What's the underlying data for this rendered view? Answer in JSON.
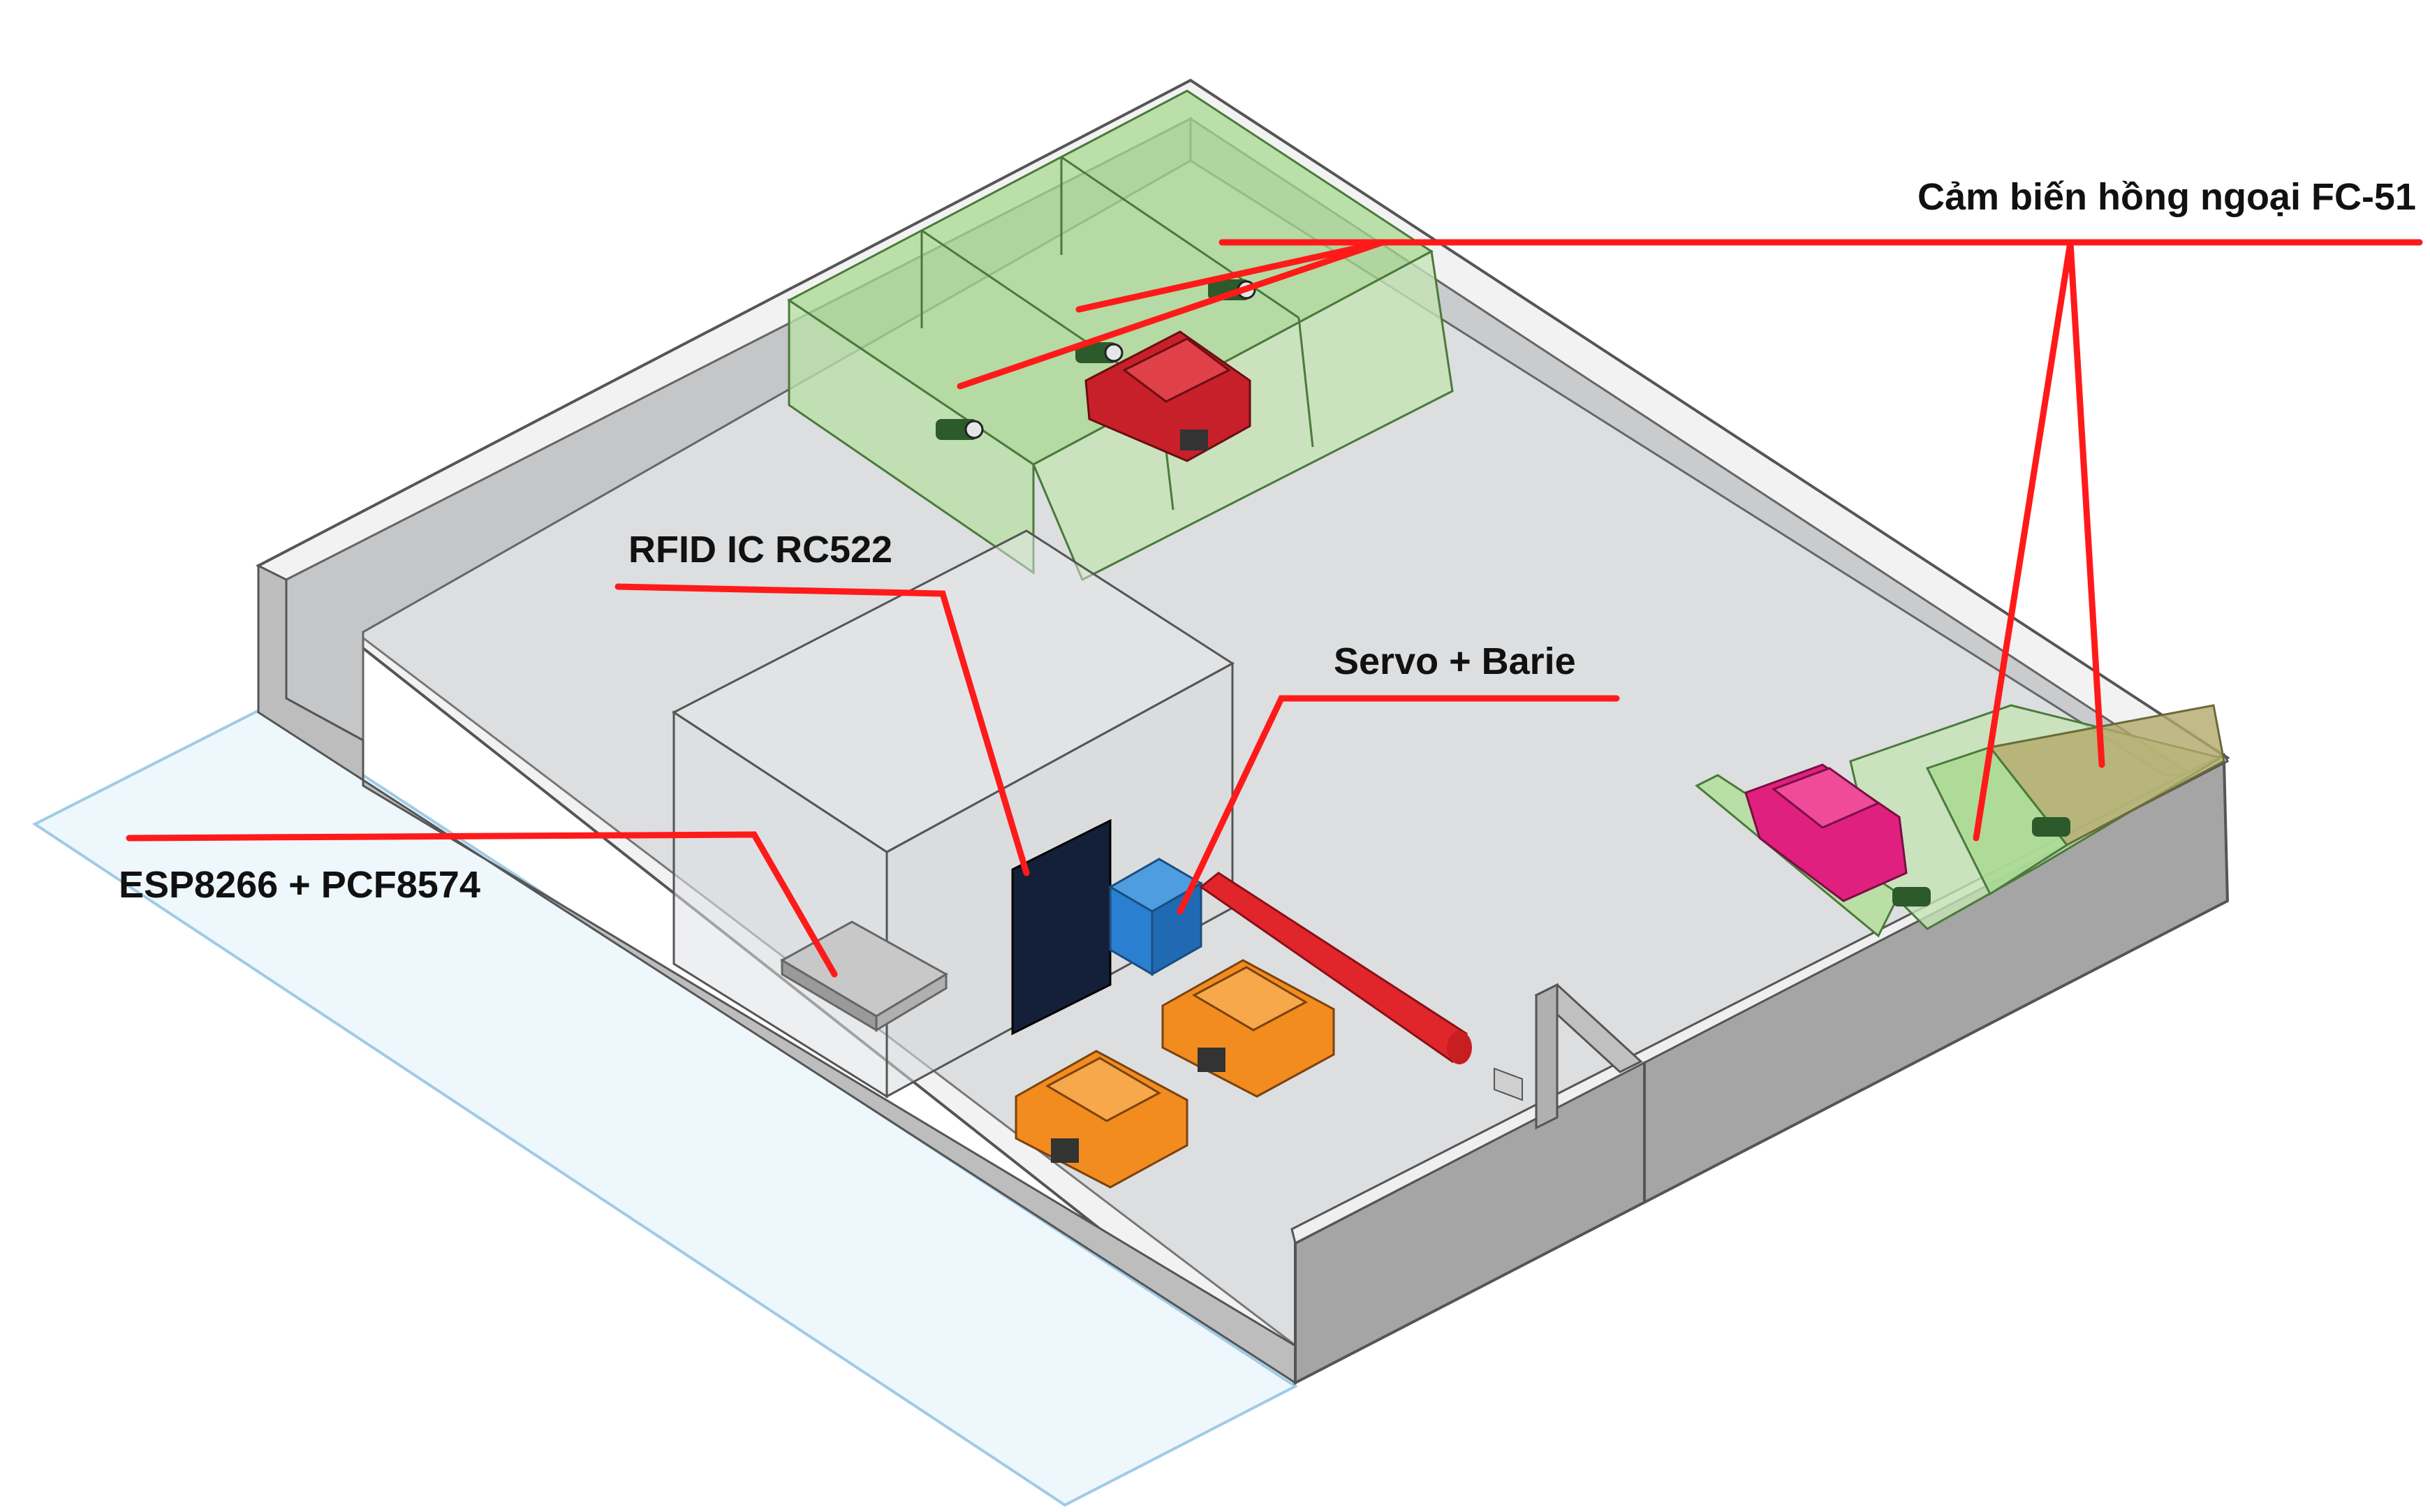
{
  "labels": {
    "ir_sensor": "Cảm biến hồng ngoại FC-51",
    "rfid": "RFID IC RC522",
    "servo": "Servo + Barie",
    "esp": "ESP8266 + PCF8574"
  },
  "colors": {
    "callout_line": "#ff1a1a",
    "floor": "#dcdee0",
    "wall_top": "#f0f0f0",
    "wall_side": "#a9a9a9",
    "sensor_zone": "#8fcf7a",
    "sensor_zone_occupied": "#b3a96a",
    "barrier": "#e0262b",
    "servo_box": "#2a7fd0",
    "rfid_panel": "#142038",
    "car_orange": "#f28c1e",
    "car_red": "#c8202a",
    "car_magenta": "#e0207e",
    "workplane": "#e9f4fa"
  },
  "icons": {
    "parked_car": "car-icon",
    "sensor_module": "ir-sensor-icon",
    "board": "esp-board-icon"
  }
}
